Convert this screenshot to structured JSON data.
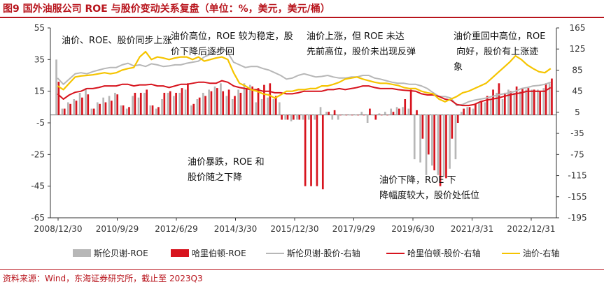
{
  "title": "图9  国外油服公司 ROE 与股价变动关系复盘（单位：%，美元，美元/桶）",
  "source": "资料来源：Wind，东海证券研究所，截止至 2023Q3",
  "colors": {
    "slb": "#b7b7b7",
    "hal": "#d7141e",
    "oil": "#f5c400",
    "accent": "#b8141c"
  },
  "chart_data": {
    "type": "bar",
    "x_tick_labels": [
      "2008/12/30",
      "2010/9/29",
      "2012/6/29",
      "2014/3/30",
      "2015/12/30",
      "2017/9/29",
      "2019/6/30",
      "2021/3/31",
      "2022/12/31"
    ],
    "ylim_left": [
      -65,
      55
    ],
    "ylim_right": [
      -195,
      165
    ],
    "yticks_left": [
      55,
      35,
      15,
      -5,
      -25,
      -45,
      -65
    ],
    "yticks_right": [
      165,
      125,
      85,
      45,
      5,
      -35,
      -75,
      -115,
      -155,
      -195
    ],
    "legend_position": "bottom",
    "legend": [
      "斯伦贝谢-ROE",
      "哈里伯顿-ROE",
      "斯伦贝谢-股价-右轴",
      "哈里伯顿-股价-右轴",
      "油价-右轴"
    ],
    "series": [
      {
        "name": "斯伦贝谢-ROE",
        "axis": "left",
        "style": "bar",
        "values": [
          35,
          4,
          8,
          10,
          14,
          17,
          4,
          8,
          11,
          12,
          14,
          6,
          4,
          12,
          11,
          14,
          6,
          4,
          10,
          14,
          12,
          14,
          16,
          6,
          10,
          14,
          16,
          18,
          20,
          12,
          10,
          16,
          20,
          19,
          8,
          10,
          11,
          10,
          8,
          -3,
          -4,
          -3,
          -3,
          -3,
          -3,
          5,
          2,
          -3,
          -3,
          0,
          0,
          0,
          2,
          -5,
          0,
          1,
          2,
          4,
          5,
          5,
          4,
          -28,
          -30,
          -38,
          -32,
          -38,
          -39,
          -34,
          -28,
          2,
          5,
          4,
          8,
          8,
          10,
          14,
          10,
          16,
          14,
          15,
          16,
          16,
          16,
          17,
          20
        ]
      },
      {
        "name": "哈里伯顿-ROE",
        "axis": "left",
        "style": "bar",
        "values": [
          21,
          4,
          7,
          9,
          11,
          13,
          4,
          7,
          8,
          9,
          13,
          6,
          5,
          14,
          14,
          16,
          6,
          5,
          14,
          15,
          14,
          17,
          20,
          7,
          11,
          12,
          15,
          17,
          15,
          16,
          12,
          14,
          17,
          18,
          17,
          19,
          20,
          12,
          -3,
          -3,
          -3,
          -3,
          -45,
          -45,
          -45,
          -47,
          2,
          3,
          0,
          0,
          0,
          0,
          0,
          4,
          -3,
          0,
          0,
          2,
          4,
          10,
          16,
          3,
          -15,
          -25,
          -35,
          -45,
          -40,
          -15,
          -5,
          4,
          5,
          7,
          9,
          12,
          16,
          20,
          14,
          15,
          18,
          17,
          17,
          16,
          15,
          20,
          23
        ]
      },
      {
        "name": "斯伦贝谢-股价-右轴",
        "axis": "right",
        "style": "line",
        "values": [
          70,
          58,
          68,
          78,
          80,
          78,
          82,
          85,
          88,
          90,
          90,
          95,
          98,
          93,
          95,
          92,
          97,
          95,
          92,
          93,
          95,
          95,
          98,
          100,
          102,
          110,
          115,
          118,
          128,
          118,
          100,
          95,
          90,
          92,
          92,
          88,
          85,
          80,
          75,
          68,
          70,
          75,
          78,
          75,
          72,
          73,
          75,
          72,
          70,
          70,
          72,
          72,
          75,
          75,
          70,
          68,
          65,
          62,
          60,
          60,
          58,
          58,
          55,
          50,
          42,
          35,
          35,
          32,
          18,
          20,
          25,
          28,
          30,
          32,
          35,
          38,
          40,
          42,
          45,
          50,
          52,
          55,
          56,
          58,
          62
        ]
      },
      {
        "name": "哈里伯顿-股价-右轴",
        "axis": "right",
        "style": "line",
        "values": [
          40,
          30,
          38,
          43,
          45,
          50,
          50,
          52,
          55,
          55,
          55,
          58,
          58,
          55,
          57,
          57,
          58,
          55,
          55,
          52,
          55,
          58,
          58,
          60,
          62,
          62,
          60,
          60,
          65,
          62,
          55,
          52,
          50,
          48,
          48,
          45,
          45,
          42,
          42,
          40,
          40,
          42,
          45,
          45,
          45,
          45,
          48,
          48,
          50,
          48,
          50,
          52,
          55,
          55,
          52,
          50,
          50,
          50,
          48,
          47,
          46,
          45,
          40,
          38,
          38,
          35,
          30,
          28,
          20,
          18,
          18,
          20,
          25,
          28,
          30,
          32,
          35,
          38,
          40,
          42,
          45,
          45,
          45,
          45,
          52
        ]
      },
      {
        "name": "油价-右轴",
        "axis": "right",
        "style": "line",
        "values": [
          55,
          48,
          60,
          72,
          74,
          75,
          76,
          78,
          80,
          78,
          80,
          85,
          88,
          90,
          110,
          120,
          105,
          110,
          108,
          105,
          108,
          110,
          110,
          105,
          110,
          102,
          105,
          108,
          110,
          105,
          80,
          60,
          55,
          48,
          45,
          40,
          38,
          32,
          38,
          45,
          45,
          48,
          48,
          50,
          50,
          55,
          55,
          58,
          62,
          68,
          70,
          72,
          68,
          65,
          62,
          60,
          60,
          58,
          56,
          52,
          50,
          50,
          45,
          42,
          40,
          30,
          25,
          30,
          35,
          42,
          45,
          50,
          55,
          60,
          70,
          80,
          90,
          100,
          112,
          105,
          95,
          88,
          82,
          80,
          88
        ]
      }
    ],
    "annotations": [
      "油价、ROE、股价同步上涨",
      "油价高位，ROE 较为稳定，股价下降后逐步回",
      "油价上涨，但 ROE 未达先前高位，股价未出现反弹",
      "油价重回中高位，ROE 向好，股价有上涨迹象",
      "油价暴跌，ROE 和股价随之下降",
      "油价下降，ROE 下降幅度较大，股价处低位"
    ]
  }
}
